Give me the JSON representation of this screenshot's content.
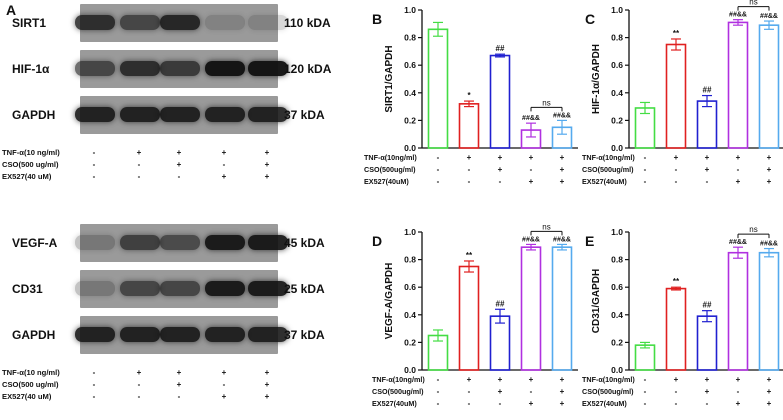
{
  "panel_a": {
    "letter": "A",
    "blot_groups": [
      {
        "rows": [
          {
            "label": "SIRT1",
            "kda": "110 kDA",
            "intensities": [
              0.75,
              0.55,
              0.8,
              0.05,
              0.05
            ]
          },
          {
            "label": "HIF-1α",
            "kda": "120 kDA",
            "intensities": [
              0.55,
              0.75,
              0.65,
              0.95,
              0.95
            ]
          },
          {
            "label": "GAPDH",
            "kda": "37 kDA",
            "intensities": [
              0.85,
              0.85,
              0.85,
              0.85,
              0.85
            ]
          }
        ],
        "treatments": [
          {
            "label": "TNF-α(10 ng/ml)",
            "signs": [
              "-",
              "+",
              "+",
              "+",
              "+"
            ]
          },
          {
            "label": "CSO(500 ug/ml)",
            "signs": [
              "-",
              "-",
              "+",
              "-",
              "+"
            ]
          },
          {
            "label": "EX527(40 uM)",
            "signs": [
              "-",
              "-",
              "-",
              "+",
              "+"
            ]
          }
        ]
      },
      {
        "rows": [
          {
            "label": "VEGF-A",
            "kda": "45 kDA",
            "intensities": [
              0.15,
              0.6,
              0.5,
              0.9,
              0.9
            ]
          },
          {
            "label": "CD31",
            "kda": "25 kDA",
            "intensities": [
              0.15,
              0.55,
              0.55,
              0.9,
              0.9
            ]
          },
          {
            "label": "GAPDH",
            "kda": "37 kDA",
            "intensities": [
              0.85,
              0.85,
              0.85,
              0.85,
              0.85
            ]
          }
        ],
        "treatments": [
          {
            "label": "TNF-α(10 ng/ml)",
            "signs": [
              "-",
              "+",
              "+",
              "+",
              "+"
            ]
          },
          {
            "label": "CSO(500 ug/ml)",
            "signs": [
              "-",
              "-",
              "+",
              "-",
              "+"
            ]
          },
          {
            "label": "EX527(40 uM)",
            "signs": [
              "-",
              "-",
              "-",
              "+",
              "+"
            ]
          }
        ]
      }
    ]
  },
  "chart_data": [
    {
      "panel": "B",
      "type": "bar",
      "ylabel": "SIRT1/GAPDH",
      "ylim": [
        0,
        1.0
      ],
      "yticks": [
        "0.0",
        "0.2",
        "0.4",
        "0.6",
        "0.8",
        "1.0"
      ],
      "values": [
        0.86,
        0.32,
        0.67,
        0.13,
        0.15
      ],
      "errors": [
        0.05,
        0.02,
        0.01,
        0.05,
        0.05
      ],
      "colors": [
        "#44dd44",
        "#e02020",
        "#2020d0",
        "#b030e0",
        "#55aaee"
      ],
      "annotations": [
        "",
        "*",
        "##",
        "##&&",
        "##&&"
      ],
      "bracket": "ns",
      "treatments": [
        {
          "label": "TNF-α(10ng/ml)",
          "signs": [
            "-",
            "+",
            "+",
            "+",
            "+"
          ]
        },
        {
          "label": "CSO(500ug/ml)",
          "signs": [
            "-",
            "-",
            "+",
            "-",
            "+"
          ]
        },
        {
          "label": "EX527(40uM)",
          "signs": [
            "-",
            "-",
            "-",
            "+",
            "+"
          ]
        }
      ]
    },
    {
      "panel": "C",
      "type": "bar",
      "ylabel": "HIF-1α/GAPDH",
      "ylim": [
        0,
        1.0
      ],
      "yticks": [
        "0.0",
        "0.2",
        "0.4",
        "0.6",
        "0.8",
        "1.0"
      ],
      "values": [
        0.29,
        0.75,
        0.34,
        0.91,
        0.89
      ],
      "errors": [
        0.04,
        0.04,
        0.04,
        0.02,
        0.03
      ],
      "colors": [
        "#44dd44",
        "#e02020",
        "#2020d0",
        "#b030e0",
        "#55aaee"
      ],
      "annotations": [
        "",
        "**",
        "##",
        "##&&",
        "##&&"
      ],
      "bracket": "ns",
      "treatments": [
        {
          "label": "TNF-α(10ng/ml)",
          "signs": [
            "-",
            "+",
            "+",
            "+",
            "+"
          ]
        },
        {
          "label": "CSO(500ug/ml)",
          "signs": [
            "-",
            "-",
            "+",
            "-",
            "+"
          ]
        },
        {
          "label": "EX527(40uM)",
          "signs": [
            "-",
            "-",
            "-",
            "+",
            "+"
          ]
        }
      ]
    },
    {
      "panel": "D",
      "type": "bar",
      "ylabel": "VEGF-A/GAPDH",
      "ylim": [
        0,
        1.0
      ],
      "yticks": [
        "0.0",
        "0.2",
        "0.4",
        "0.6",
        "0.8",
        "1.0"
      ],
      "values": [
        0.25,
        0.75,
        0.39,
        0.89,
        0.89
      ],
      "errors": [
        0.04,
        0.04,
        0.05,
        0.02,
        0.02
      ],
      "colors": [
        "#44dd44",
        "#e02020",
        "#2020d0",
        "#b030e0",
        "#55aaee"
      ],
      "annotations": [
        "",
        "**",
        "##",
        "##&&",
        "##&&"
      ],
      "bracket": "ns",
      "treatments": [
        {
          "label": "TNF-α(10ng/ml)",
          "signs": [
            "-",
            "+",
            "+",
            "+",
            "+"
          ]
        },
        {
          "label": "CSO(500ug/ml)",
          "signs": [
            "-",
            "-",
            "+",
            "-",
            "+"
          ]
        },
        {
          "label": "EX527(40uM)",
          "signs": [
            "-",
            "-",
            "-",
            "+",
            "+"
          ]
        }
      ]
    },
    {
      "panel": "E",
      "type": "bar",
      "ylabel": "CD31/GAPDH",
      "ylim": [
        0,
        1.0
      ],
      "yticks": [
        "0.0",
        "0.2",
        "0.4",
        "0.6",
        "0.8",
        "1.0"
      ],
      "values": [
        0.18,
        0.59,
        0.39,
        0.85,
        0.85
      ],
      "errors": [
        0.02,
        0.01,
        0.04,
        0.04,
        0.03
      ],
      "colors": [
        "#44dd44",
        "#e02020",
        "#2020d0",
        "#b030e0",
        "#55aaee"
      ],
      "annotations": [
        "",
        "**",
        "##",
        "##&&",
        "##&&"
      ],
      "bracket": "ns",
      "treatments": [
        {
          "label": "TNF-α(10ng/ml)",
          "signs": [
            "-",
            "+",
            "+",
            "+",
            "+"
          ]
        },
        {
          "label": "CSO(500ug/ml)",
          "signs": [
            "-",
            "-",
            "+",
            "-",
            "+"
          ]
        },
        {
          "label": "EX527(40uM)",
          "signs": [
            "-",
            "-",
            "-",
            "+",
            "+"
          ]
        }
      ]
    }
  ]
}
